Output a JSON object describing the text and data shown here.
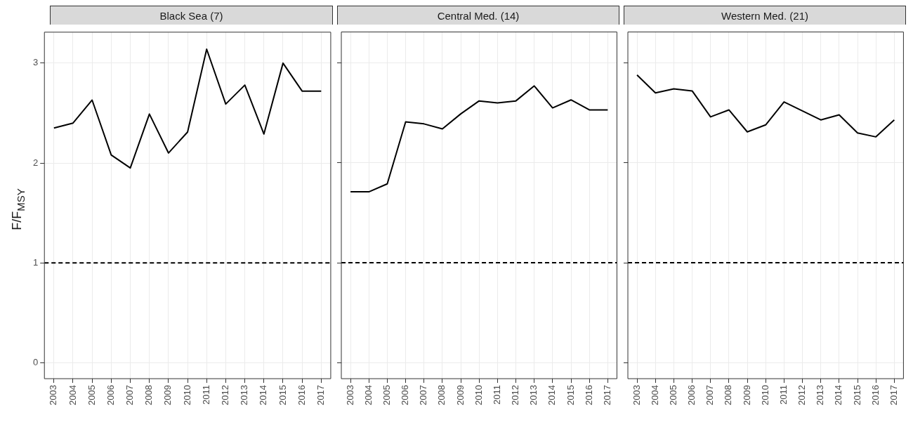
{
  "chart_data": [
    {
      "type": "line",
      "title": "Black Sea (7)",
      "ylabel": "F/F$_{MSY}$",
      "categories": [
        "2003",
        "2004",
        "2005",
        "2006",
        "2007",
        "2008",
        "2009",
        "2010",
        "2011",
        "2012",
        "2013",
        "2014",
        "2015",
        "2016",
        "2017"
      ],
      "series": [
        {
          "color": "#000000",
          "values": [
            2.35,
            2.4,
            2.63,
            2.08,
            1.95,
            2.49,
            2.1,
            2.31,
            3.14,
            2.59,
            2.78,
            2.29,
            3.0,
            2.72,
            2.72
          ]
        }
      ],
      "ylim": [
        -0.16,
        3.31
      ],
      "yticks": [
        0,
        1,
        2,
        3
      ],
      "grid": true,
      "ref_lines": [
        {
          "axis": "y",
          "value": 1,
          "color": "#000000",
          "line_style": "dashed"
        }
      ]
    },
    {
      "type": "line",
      "title": "Central Med. (14)",
      "categories": [
        "2003",
        "2004",
        "2005",
        "2006",
        "2007",
        "2008",
        "2009",
        "2010",
        "2011",
        "2012",
        "2013",
        "2014",
        "2015",
        "2016",
        "2017"
      ],
      "series": [
        {
          "color": "#000000",
          "values": [
            1.71,
            1.71,
            1.79,
            2.41,
            2.39,
            2.34,
            2.49,
            2.62,
            2.6,
            2.62,
            2.77,
            2.55,
            2.63,
            2.53,
            2.53
          ]
        }
      ],
      "ylim": [
        -0.16,
        3.31
      ],
      "yticks": [
        0,
        1,
        2,
        3
      ],
      "grid": true,
      "tick_labels": "x",
      "ref_lines": [
        {
          "axis": "y",
          "value": 1,
          "color": "#000000",
          "line_style": "dashed"
        }
      ]
    },
    {
      "type": "line",
      "title": "Western Med. (21)",
      "categories": [
        "2003",
        "2004",
        "2005",
        "2006",
        "2007",
        "2008",
        "2009",
        "2010",
        "2011",
        "2012",
        "2013",
        "2014",
        "2015",
        "2016",
        "2017"
      ],
      "series": [
        {
          "color": "#000000",
          "values": [
            2.88,
            2.7,
            2.74,
            2.72,
            2.46,
            2.53,
            2.31,
            2.38,
            2.61,
            2.52,
            2.43,
            2.48,
            2.3,
            2.26,
            2.43
          ]
        }
      ],
      "ylim": [
        -0.16,
        3.31
      ],
      "yticks": [
        0,
        1,
        2,
        3
      ],
      "grid": true,
      "tick_labels": "x",
      "ref_lines": [
        {
          "axis": "y",
          "value": 1,
          "color": "#000000",
          "line_style": "dashed"
        }
      ]
    }
  ]
}
